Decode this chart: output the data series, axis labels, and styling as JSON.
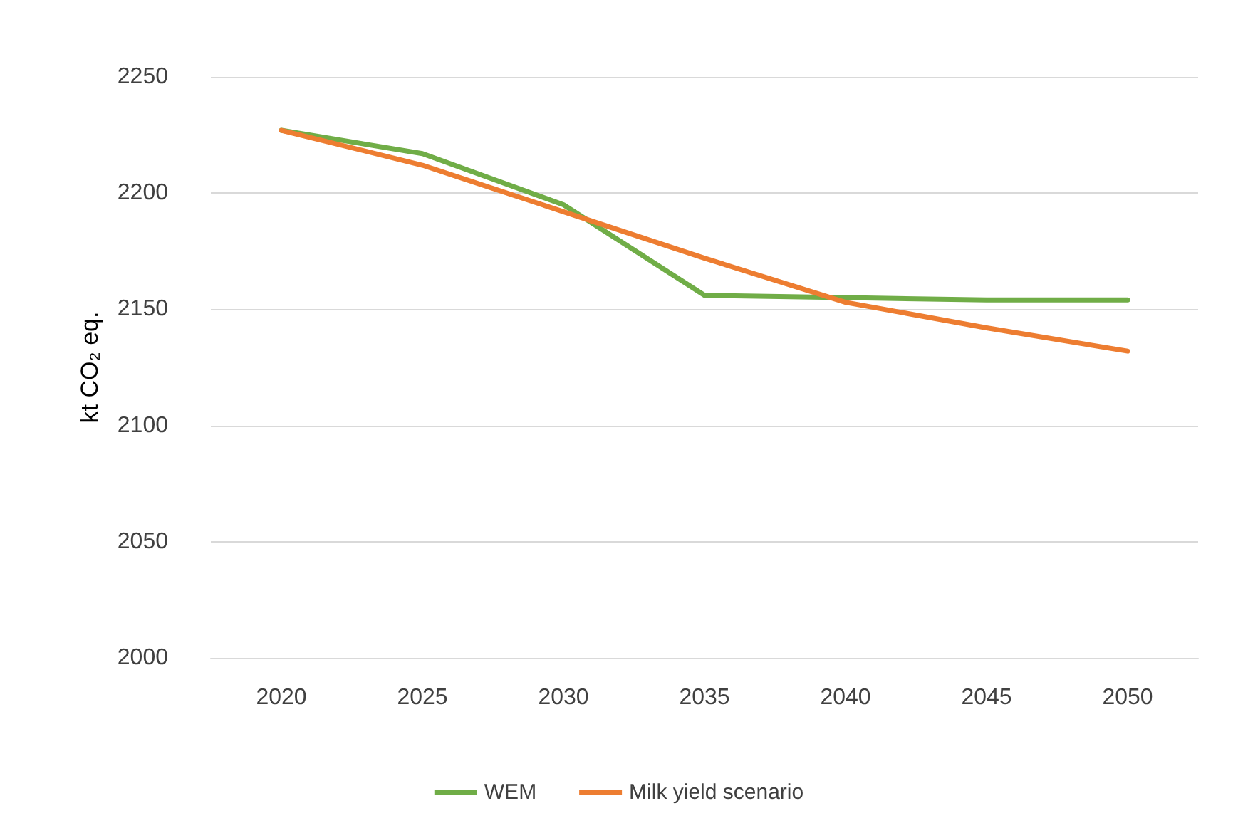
{
  "chart_data": {
    "type": "line",
    "ylabel": "kt CO₂ eq.",
    "categories": [
      "2020",
      "2025",
      "2030",
      "2035",
      "2040",
      "2045",
      "2050"
    ],
    "series": [
      {
        "name": "WEM",
        "color": "#70ad47",
        "values": [
          2227,
          2217,
          2195,
          2156,
          2155,
          2154,
          2154
        ]
      },
      {
        "name": "Milk yield scenario",
        "color": "#ed7d31",
        "values": [
          2227,
          2212,
          2192,
          2172,
          2153,
          2142,
          2132
        ]
      }
    ],
    "ylim": [
      2000,
      2250
    ],
    "yticks": [
      2000,
      2050,
      2100,
      2150,
      2200,
      2250
    ],
    "grid": "y",
    "legend": "bottom",
    "marker": "none",
    "line_style": "solid"
  }
}
